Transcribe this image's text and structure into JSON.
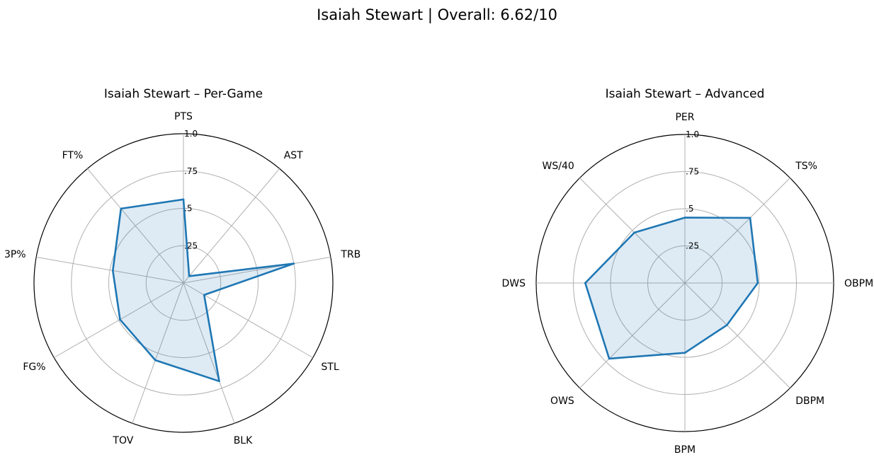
{
  "figure": {
    "title": "Isaiah Stewart | Overall: 6.62/10"
  },
  "chart_data": [
    {
      "type": "radar",
      "title": "Isaiah Stewart – Per-Game",
      "categories": [
        "PTS",
        "AST",
        "TRB",
        "STL",
        "BLK",
        "TOV",
        "FG%",
        "3P%",
        "FT%"
      ],
      "values": [
        0.56,
        0.06,
        0.75,
        0.16,
        0.7,
        0.55,
        0.49,
        0.48,
        0.65
      ],
      "rlim": [
        0,
        1.0
      ],
      "rticks": [
        0.25,
        0.5,
        0.75,
        1.0
      ],
      "rtick_labels": [
        ".25",
        ".5",
        ".75",
        "1.0"
      ],
      "grid": true,
      "colors": {
        "line": "#1f77b4",
        "fill": "#1f77b4",
        "grid": "#b0b0b0"
      }
    },
    {
      "type": "radar",
      "title": "Isaiah Stewart – Advanced",
      "categories": [
        "PER",
        "TS%",
        "OBPM",
        "DBPM",
        "BPM",
        "OWS",
        "DWS",
        "WS/40"
      ],
      "values": [
        0.44,
        0.62,
        0.49,
        0.4,
        0.47,
        0.72,
        0.67,
        0.48
      ],
      "rlim": [
        0,
        1.0
      ],
      "rticks": [
        0.25,
        0.5,
        0.75,
        1.0
      ],
      "rtick_labels": [
        ".25",
        ".5",
        ".75",
        "1.0"
      ],
      "grid": true,
      "colors": {
        "line": "#1f77b4",
        "fill": "#1f77b4",
        "grid": "#b0b0b0"
      }
    }
  ]
}
